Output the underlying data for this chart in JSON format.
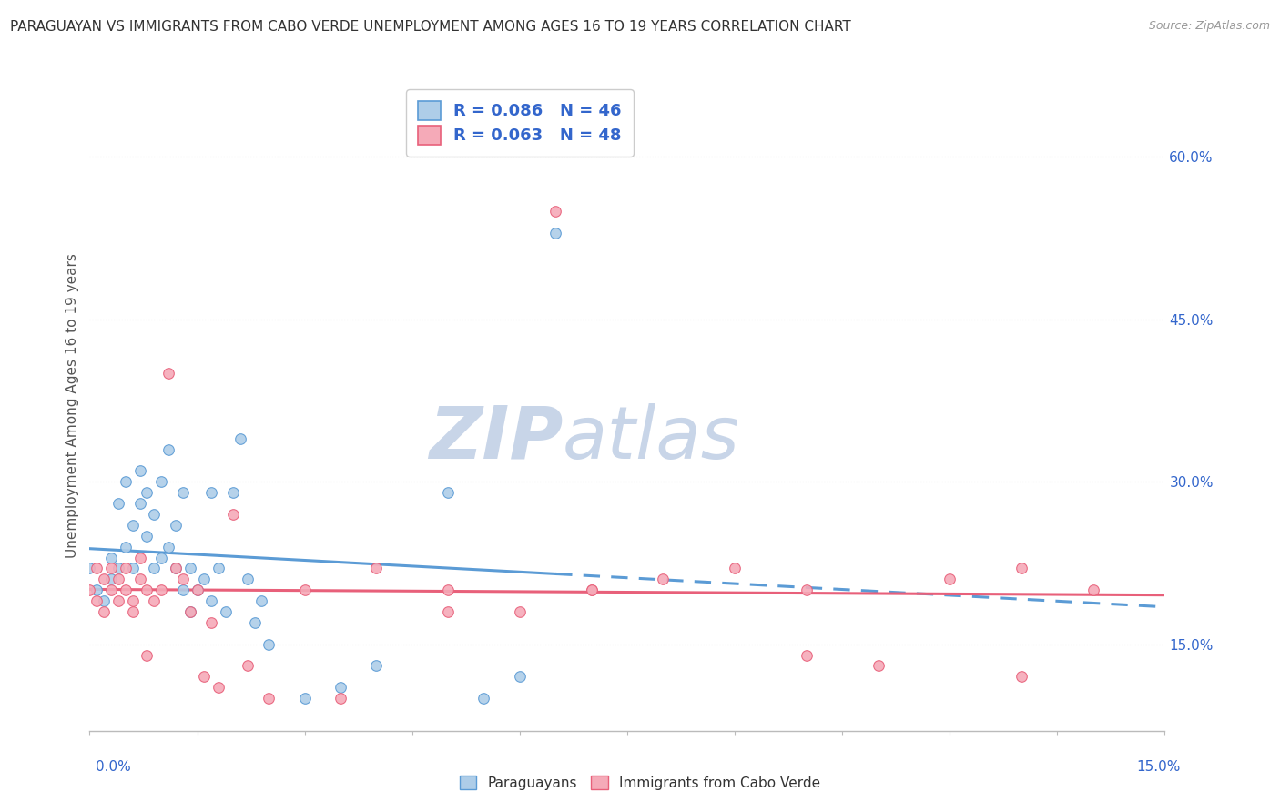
{
  "title": "PARAGUAYAN VS IMMIGRANTS FROM CABO VERDE UNEMPLOYMENT AMONG AGES 16 TO 19 YEARS CORRELATION CHART",
  "source": "Source: ZipAtlas.com",
  "ylabel": "Unemployment Among Ages 16 to 19 years",
  "y_tick_labels": [
    "15.0%",
    "30.0%",
    "45.0%",
    "60.0%"
  ],
  "y_tick_values": [
    0.15,
    0.3,
    0.45,
    0.6
  ],
  "xlim": [
    0.0,
    0.15
  ],
  "ylim": [
    0.07,
    0.67
  ],
  "blue_x": [
    0.0,
    0.001,
    0.002,
    0.003,
    0.003,
    0.004,
    0.004,
    0.005,
    0.005,
    0.006,
    0.006,
    0.007,
    0.007,
    0.008,
    0.008,
    0.009,
    0.009,
    0.01,
    0.01,
    0.011,
    0.011,
    0.012,
    0.012,
    0.013,
    0.013,
    0.014,
    0.014,
    0.015,
    0.016,
    0.017,
    0.017,
    0.018,
    0.019,
    0.02,
    0.021,
    0.022,
    0.023,
    0.024,
    0.025,
    0.03,
    0.035,
    0.04,
    0.05,
    0.055,
    0.06,
    0.065
  ],
  "blue_y": [
    0.22,
    0.2,
    0.19,
    0.21,
    0.23,
    0.22,
    0.28,
    0.24,
    0.3,
    0.22,
    0.26,
    0.28,
    0.31,
    0.25,
    0.29,
    0.22,
    0.27,
    0.23,
    0.3,
    0.24,
    0.33,
    0.22,
    0.26,
    0.2,
    0.29,
    0.18,
    0.22,
    0.2,
    0.21,
    0.19,
    0.29,
    0.22,
    0.18,
    0.29,
    0.34,
    0.21,
    0.17,
    0.19,
    0.15,
    0.1,
    0.11,
    0.13,
    0.29,
    0.1,
    0.12,
    0.53
  ],
  "pink_x": [
    0.0,
    0.001,
    0.001,
    0.002,
    0.002,
    0.003,
    0.003,
    0.004,
    0.004,
    0.005,
    0.005,
    0.006,
    0.006,
    0.007,
    0.007,
    0.008,
    0.008,
    0.009,
    0.01,
    0.011,
    0.012,
    0.013,
    0.014,
    0.015,
    0.016,
    0.017,
    0.018,
    0.02,
    0.022,
    0.025,
    0.03,
    0.035,
    0.04,
    0.05,
    0.06,
    0.065,
    0.07,
    0.08,
    0.09,
    0.1,
    0.11,
    0.12,
    0.13,
    0.14,
    0.05,
    0.07,
    0.1,
    0.13
  ],
  "pink_y": [
    0.2,
    0.19,
    0.22,
    0.18,
    0.21,
    0.2,
    0.22,
    0.19,
    0.21,
    0.2,
    0.22,
    0.18,
    0.19,
    0.21,
    0.23,
    0.2,
    0.14,
    0.19,
    0.2,
    0.4,
    0.22,
    0.21,
    0.18,
    0.2,
    0.12,
    0.17,
    0.11,
    0.27,
    0.13,
    0.1,
    0.2,
    0.1,
    0.22,
    0.2,
    0.18,
    0.55,
    0.2,
    0.21,
    0.22,
    0.2,
    0.13,
    0.21,
    0.12,
    0.2,
    0.18,
    0.2,
    0.14,
    0.22
  ],
  "blue_R": 0.086,
  "blue_N": 46,
  "pink_R": 0.063,
  "pink_N": 48,
  "blue_color": "#5b9bd5",
  "blue_face": "#aecde8",
  "pink_color": "#e8607a",
  "pink_face": "#f5aab8",
  "watermark_zip": "ZIP",
  "watermark_atlas": "atlas",
  "watermark_color": "#c8d5e8",
  "legend_text_color": "#3366cc",
  "background_color": "#ffffff",
  "title_fontsize": 11,
  "axis_label_fontsize": 11,
  "tick_fontsize": 11
}
